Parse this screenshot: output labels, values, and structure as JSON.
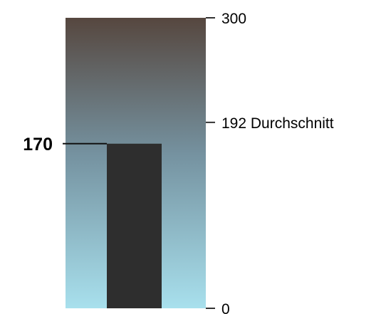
{
  "chart_data": {
    "type": "bar",
    "ylim": [
      0,
      300
    ],
    "gradient_colors": {
      "top": "#56473f",
      "middle": "#7592a0",
      "bottom": "#a8e0ed"
    },
    "bar_color": "#2e2e2e",
    "tick_color": "#333333",
    "ticks": [
      {
        "value": 0,
        "label": "0"
      },
      {
        "value": 192,
        "label": "192 Durchschnitt"
      },
      {
        "value": 300,
        "label": "300"
      }
    ],
    "value": 170,
    "value_label": "170"
  }
}
